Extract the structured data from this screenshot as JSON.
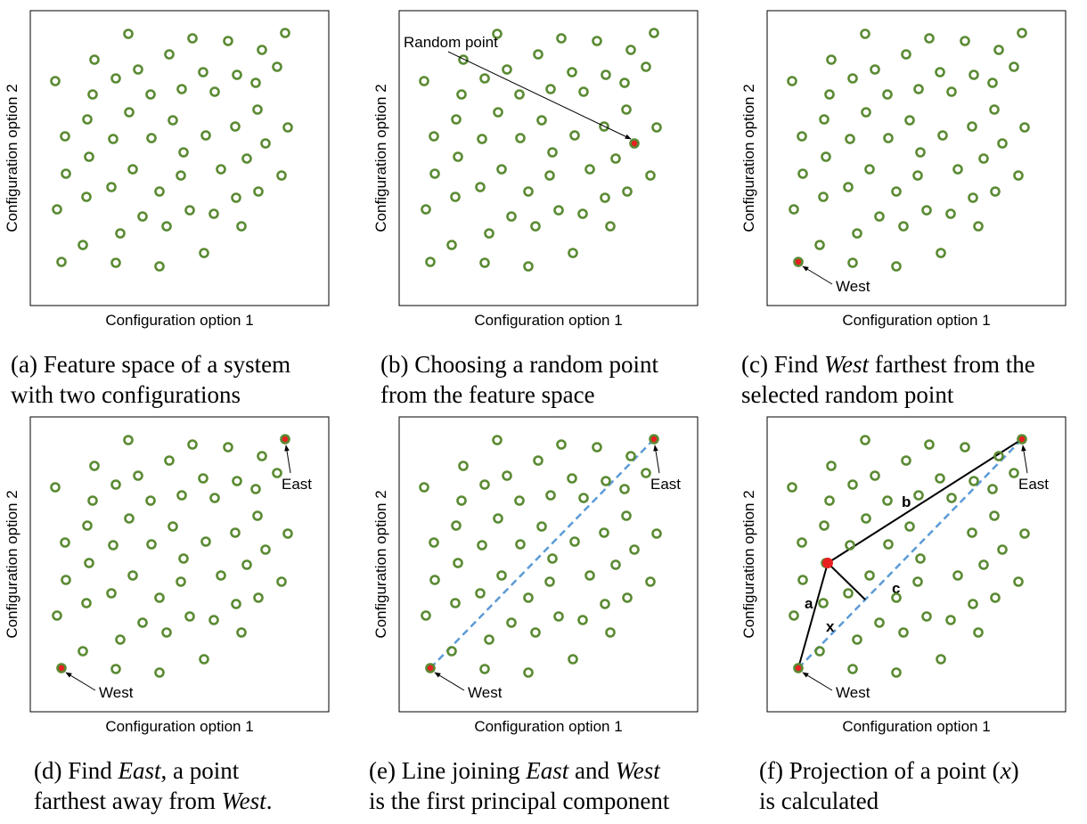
{
  "colors": {
    "point": "#5a8a32",
    "highlight": "#e82020",
    "pc_line": "#5b9bd5",
    "frame": "#000000"
  },
  "axis": {
    "x_label": "Configuration option 1",
    "y_label": "Configuration option 2"
  },
  "annotations": {
    "random_point": "Random point",
    "west": "West",
    "east": "East",
    "seg_a": "a",
    "seg_b": "b",
    "seg_c": "c",
    "seg_x": "x"
  },
  "captions": {
    "a": {
      "l1": "(a) Feature space of a system",
      "l2": "with two configurations"
    },
    "b": {
      "l1": "(b) Choosing a random point",
      "l2": "from the feature space"
    },
    "c": {
      "l1a": "(c) Find ",
      "l1b": "West",
      "l1c": " farthest from the",
      "l2": "selected random point"
    },
    "d": {
      "l1a": "(d) Find ",
      "l1b": "East",
      "l1c": ", a point",
      "l2a": "farthest away from ",
      "l2b": "West",
      "l2c": "."
    },
    "e": {
      "l1a": "(e) Line joining ",
      "l1b": "East",
      "l1c": " and ",
      "l1d": "West",
      "l2": "is the first principal component"
    },
    "f": {
      "l1a": "(f) Projection of a point (",
      "l1b": "x",
      "l1c": ")",
      "l2": "is calculated"
    }
  }
}
